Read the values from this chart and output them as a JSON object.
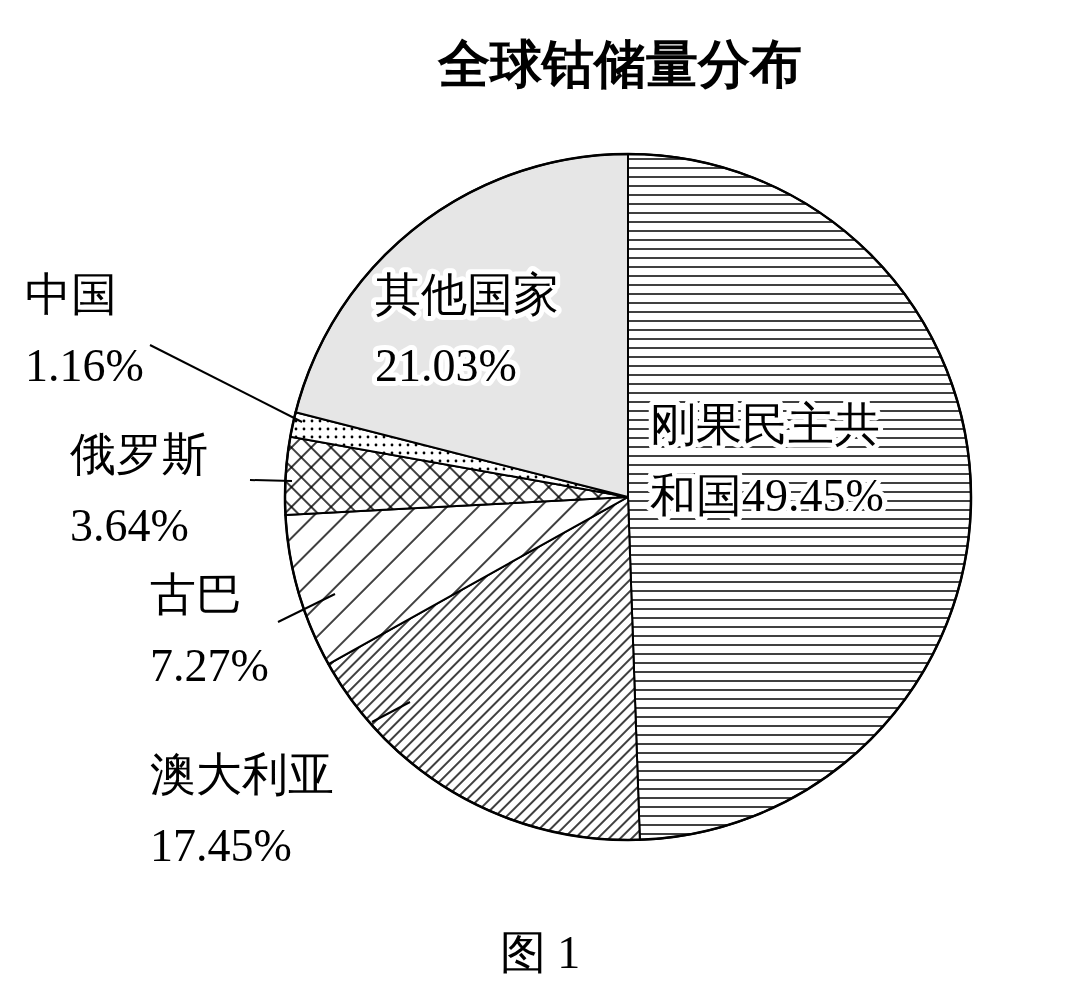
{
  "chart_data": {
    "type": "pie",
    "title": "全球钴储量分布",
    "categories": [
      "刚果民主共和国",
      "澳大利亚",
      "古巴",
      "俄罗斯",
      "中国",
      "其他国家"
    ],
    "values": [
      49.45,
      17.45,
      7.27,
      3.64,
      1.16,
      21.03
    ],
    "value_labels": [
      "49.45%",
      "17.45%",
      "7.27%",
      "3.64%",
      "1.16%",
      "21.03%"
    ],
    "colors": [
      "#ffffff",
      "#ffffff",
      "#ffffff",
      "#ffffff",
      "#ffffff",
      "#e6e6e6"
    ],
    "annotations": [
      "图 1"
    ]
  }
}
